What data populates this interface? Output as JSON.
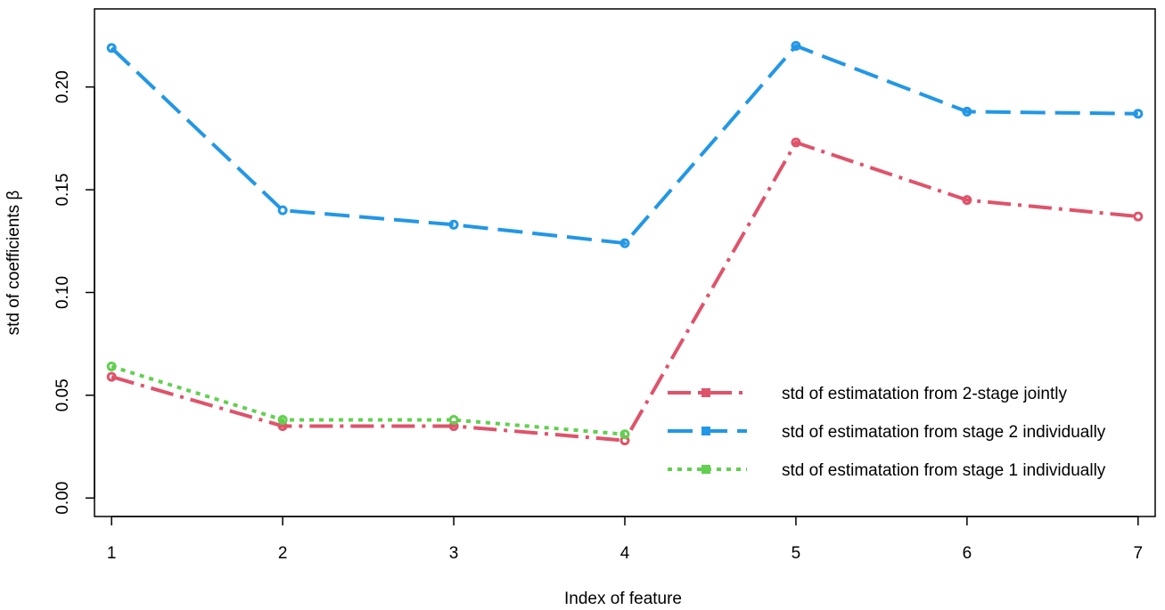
{
  "chart_data": {
    "type": "line",
    "title": "",
    "xlabel": "Index of feature",
    "ylabel": "std of coefficients β",
    "x": [
      1,
      2,
      3,
      4,
      5,
      6,
      7
    ],
    "xticks": [
      "1",
      "2",
      "3",
      "4",
      "5",
      "6",
      "7"
    ],
    "yticks": [
      "0.00",
      "0.05",
      "0.10",
      "0.15",
      "0.20"
    ],
    "xlim": [
      0.9,
      7.1
    ],
    "ylim": [
      -0.009,
      0.238
    ],
    "grid": false,
    "legend_position": "bottom-right",
    "series": [
      {
        "name": "std of estimatation from 2-stage jointly",
        "values": [
          0.059,
          0.035,
          0.035,
          0.028,
          0.173,
          0.145,
          0.137
        ],
        "color": "#DF536B",
        "dash": "longdash-dot"
      },
      {
        "name": "std of estimatation from stage 2 individually",
        "values": [
          0.219,
          0.14,
          0.133,
          0.124,
          0.22,
          0.188,
          0.187
        ],
        "color": "#2297E6",
        "dash": "longdash"
      },
      {
        "name": "std of estimatation from stage 1 individually",
        "values": [
          0.064,
          0.038,
          0.038,
          0.031,
          null,
          null,
          null
        ],
        "color": "#61D04F",
        "dash": "dotted"
      }
    ]
  }
}
